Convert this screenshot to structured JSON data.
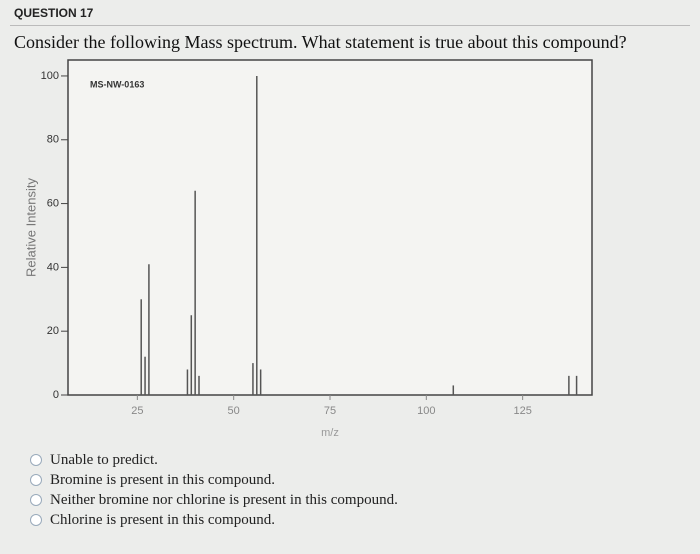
{
  "question": {
    "label": "QUESTION 17",
    "prompt": "Consider the following Mass spectrum. What statement is true about this compound?"
  },
  "chart_data": {
    "type": "bar",
    "subtitle": "MS-NW-0163",
    "x_label": "m/z",
    "y_label": "Relative Intensity",
    "x": [
      26,
      27,
      28,
      38,
      39,
      40,
      41,
      55,
      56,
      57,
      107,
      137,
      139
    ],
    "values": [
      30,
      12,
      41,
      8,
      25,
      64,
      6,
      10,
      100,
      8,
      3,
      6,
      6
    ],
    "color": "#555555",
    "xlim": [
      7,
      143
    ],
    "xticks": [
      25,
      50,
      75,
      100,
      125
    ],
    "ylim": [
      0,
      105
    ],
    "yticks": [
      0,
      20,
      40,
      60,
      80,
      100
    ]
  },
  "options": [
    "Unable to predict.",
    "Bromine is present in this compound.",
    "Neither bromine nor chlorine is present in this compound.",
    "Chlorine is present in this compound."
  ]
}
